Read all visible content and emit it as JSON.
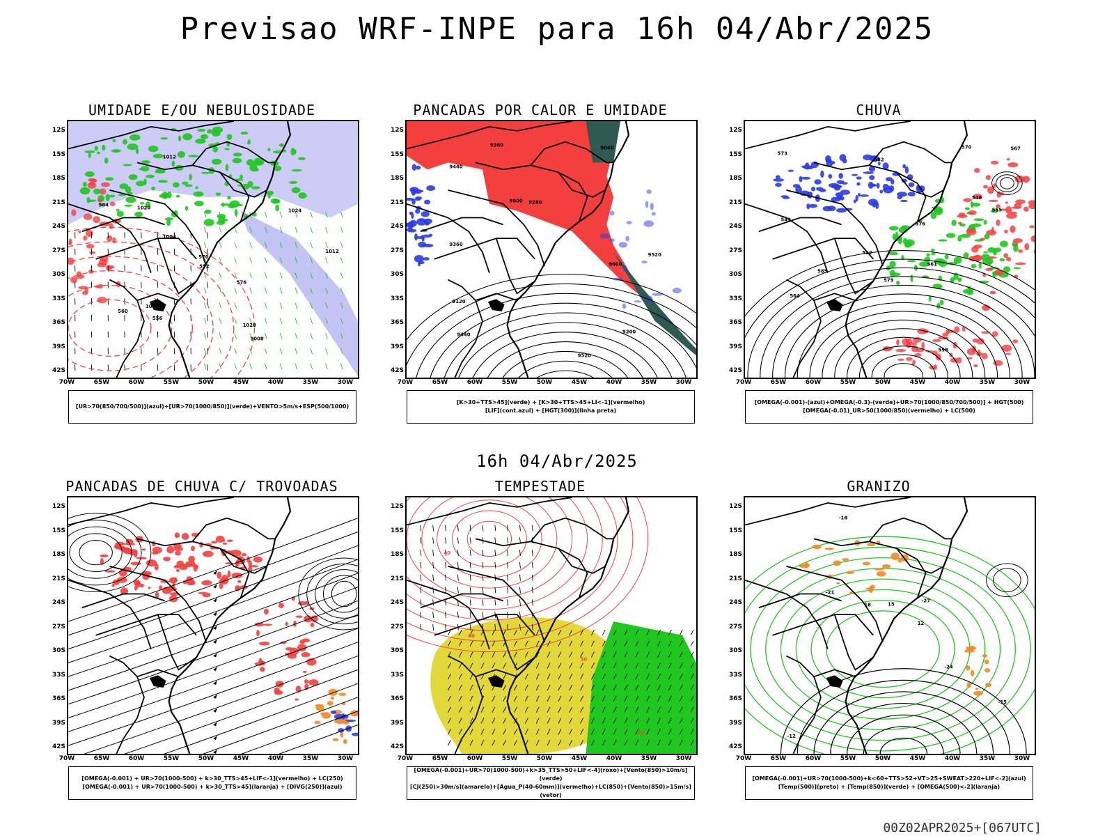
{
  "header": {
    "title": "Previsao WRF-INPE  para 16h 04/Abr/2025",
    "mid_date": "16h 04/Abr/2025",
    "footer": "00Z02APR2025+[067UTC]"
  },
  "axes": {
    "lat_labels": [
      "12S",
      "15S",
      "18S",
      "21S",
      "24S",
      "27S",
      "30S",
      "33S",
      "36S",
      "39S",
      "42S"
    ],
    "lon_labels": [
      "70W",
      "65W",
      "60W",
      "55W",
      "50W",
      "45W",
      "40W",
      "35W",
      "30W"
    ]
  },
  "colors": {
    "red": "#f43f3f",
    "green": "#1ec81e",
    "blue": "#2a3ce6",
    "lavender": "#aaaaf0",
    "yellow": "#e2d83a",
    "orange": "#f08a28",
    "darkteal": "#2f5a52"
  },
  "panels": [
    {
      "title": "UMIDADE E/OU NEBULOSIDADE",
      "legend": [
        "[UR>70(850/700/500)](azul)+[UR>70(1000/850)](verde)+VENTO>5m/s+ESP(500/1000)"
      ],
      "contour_labels": [
        "1008",
        "1012",
        "1016",
        "1020",
        "1024",
        "1028",
        "1012",
        "1004",
        "552",
        "556",
        "560",
        "564",
        "570",
        "576"
      ]
    },
    {
      "title": "PANCADAS POR CALOR E UMIDADE",
      "legend": [
        "[K>30+TTS>45](verde) + [K>30+TTS>45+LI<-1](vermelho)",
        "[LIF](cont.azul) + [HGT(300)](linha preta)"
      ],
      "contour_labels": [
        "9600",
        "9520",
        "9440",
        "9360",
        "9280",
        "9200",
        "9120",
        "9040",
        "9600",
        "9520",
        "9440",
        "9360"
      ]
    },
    {
      "title": "CHUVA",
      "legend": [
        "[OMEGA(-0.001)-(azul)+OMEGA(-0.3)-(verde)+UR>70(1000/850/700/500)] + HGT(500)",
        "[OMEGA(-0.01)_UR>50(1000/850)(vermelho) + LC(500)"
      ],
      "contour_labels": [
        "585",
        "582",
        "579",
        "576",
        "573",
        "570",
        "567",
        "564",
        "561",
        "558",
        "555",
        "552",
        "549",
        "546"
      ]
    },
    {
      "title": "PANCADAS DE CHUVA C/ TROVOADAS",
      "legend": [
        "[OMEGA(-0.001) + UR>70(1000-500) + k>30_TTS>45+LIF<-1](vermelho) + LC(250)",
        "[OMEGA(-0.001) + UR>70(1000-500) + k>30_TTS>45](laranja) + [DIVG(250)](azul)"
      ],
      "contour_labels": []
    },
    {
      "title": "TEMPESTADE",
      "legend": [
        "[OMEGA(-0.001)+UR>70(1000-500)+k>35_TTS>50+LIF<-4](roxo)+[Vento(850)>10m/s](verde)",
        "[CJ(250)>30m/s](amarelo)+[Agua_P(40-60mm)](vermelho)+LC(850)+[Vento(850)>15m/s](vetor)"
      ],
      "contour_labels": [
        "40",
        "40",
        "50",
        "40"
      ]
    },
    {
      "title": "GRANIZO",
      "legend": [
        "[OMEGA(-0.001)+UR>70(1000-500)+k<60+TTS>52+VT>25+SWEAT>220+LIF<-2](azul)",
        "[Temp(500)](preto) + [Temp(850)](verde) + [OMEGA(500)<-2](laranja)"
      ],
      "contour_labels": [
        "-12",
        "-15",
        "-18",
        "-21",
        "-24",
        "-27",
        "12",
        "15",
        "18"
      ]
    }
  ]
}
